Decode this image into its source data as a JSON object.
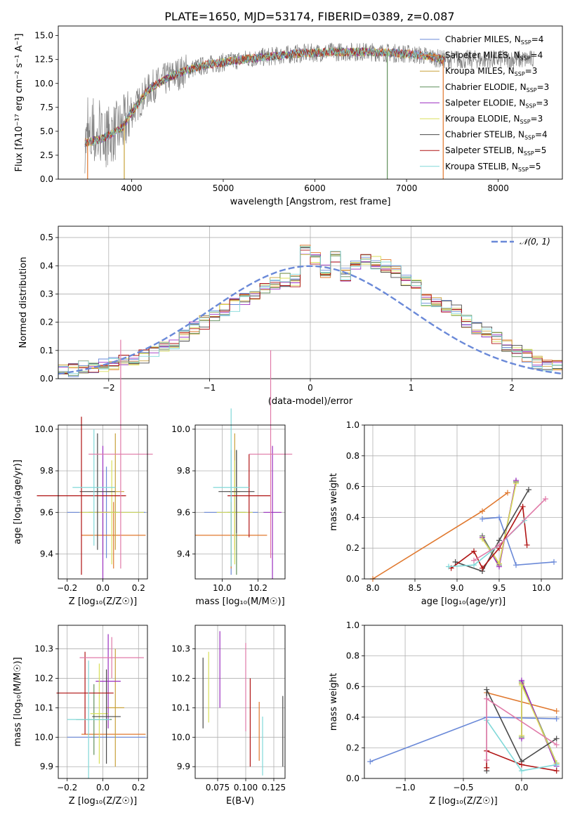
{
  "series_colors": [
    "#6a89d8",
    "#e0782e",
    "#c8a13a",
    "#5f8f5a",
    "#9b2fc0",
    "#d9df5a",
    "#4a4a4a",
    "#b01414",
    "#80d8d8",
    "#e07aa8"
  ],
  "chart_data": [
    {
      "id": "spectrum",
      "type": "line",
      "title": "PLATE=1650, MJD=53174, FIBERID=0389, z=0.087",
      "xlabel": "wavelength [Angstrom, rest frame]",
      "ylabel": "Flux [fλ10⁻¹⁷ erg cm⁻² s⁻¹ A⁻¹]",
      "xlim": [
        3200,
        8700
      ],
      "ylim": [
        0,
        16
      ],
      "xticks": [
        "4000",
        "5000",
        "6000",
        "7000",
        "8000"
      ],
      "yticks": [
        "0.0",
        "2.5",
        "5.0",
        "7.5",
        "10.0",
        "12.5",
        "15.0"
      ],
      "legend_position": "right",
      "legend": [
        "Chabrier MILES, N_SSP=4",
        "Salpeter MILES, N_SSP=4",
        "Kroupa MILES, N_SSP=3",
        "Chabrier ELODIE, N_SSP=3",
        "Salpeter ELODIE, N_SSP=3",
        "Kroupa ELODIE, N_SSP=3",
        "Chabrier STELIB, N_SSP=4",
        "Salpeter STELIB, N_SSP=5",
        "Kroupa STELIB, N_SSP=5"
      ],
      "continuum": [
        [
          3500,
          3.8
        ],
        [
          3700,
          4.3
        ],
        [
          3900,
          5.4
        ],
        [
          4000,
          7.0
        ],
        [
          4200,
          9.5
        ],
        [
          4400,
          10.6
        ],
        [
          4600,
          11.4
        ],
        [
          4800,
          11.9
        ],
        [
          5000,
          12.2
        ],
        [
          5200,
          12.5
        ],
        [
          5400,
          12.7
        ],
        [
          5600,
          12.9
        ],
        [
          5800,
          13.1
        ],
        [
          6000,
          13.2
        ],
        [
          6200,
          13.3
        ],
        [
          6400,
          13.3
        ],
        [
          6600,
          13.3
        ],
        [
          6800,
          13.2
        ],
        [
          7000,
          13.1
        ],
        [
          7200,
          12.9
        ],
        [
          7400,
          12.5
        ]
      ],
      "data_xrange": [
        3490,
        8390
      ],
      "model_xrange": [
        3490,
        7420
      ],
      "drops": [
        3520,
        3920,
        6790,
        7400
      ]
    },
    {
      "id": "residuals",
      "type": "bar",
      "xlabel": "(data-model)/error",
      "ylabel": "Normed distribution",
      "xlim": [
        -2.5,
        2.5
      ],
      "ylim": [
        0,
        0.54
      ],
      "xticks": [
        "−2",
        "−1",
        "0",
        "1",
        "2"
      ],
      "yticks": [
        "0.0",
        "0.1",
        "0.2",
        "0.3",
        "0.4",
        "0.5"
      ],
      "bin_width": 0.1,
      "bins_start": -2.5,
      "values": [
        0.03,
        0.03,
        0.04,
        0.04,
        0.05,
        0.05,
        0.06,
        0.07,
        0.08,
        0.1,
        0.11,
        0.13,
        0.15,
        0.18,
        0.2,
        0.22,
        0.24,
        0.26,
        0.28,
        0.3,
        0.32,
        0.34,
        0.35,
        0.35,
        0.46,
        0.43,
        0.38,
        0.43,
        0.37,
        0.4,
        0.42,
        0.41,
        0.4,
        0.38,
        0.35,
        0.33,
        0.28,
        0.27,
        0.26,
        0.24,
        0.2,
        0.18,
        0.16,
        0.14,
        0.12,
        0.1,
        0.08,
        0.06,
        0.05,
        0.04
      ],
      "legend": "𝒩(0, 1)",
      "legend_position": "top-right"
    },
    {
      "id": "z-age",
      "type": "scatter",
      "xlabel": "Z [log₁₀(Z/Z☉)]",
      "ylabel": "age  [log₁₀(age/yr)]",
      "xlim": [
        -0.25,
        0.25
      ],
      "ylim": [
        9.28,
        10.02
      ],
      "xticks": [
        "−0.2",
        "0.0",
        "0.2"
      ],
      "yticks": [
        "9.4",
        "9.6",
        "9.8",
        "10.0"
      ],
      "points": [
        {
          "x": 0.02,
          "y": 9.6,
          "xerr": 0.22,
          "yerr": 0.22
        },
        {
          "x": 0.06,
          "y": 9.49,
          "xerr": 0.18,
          "yerr": 0.16
        },
        {
          "x": 0.07,
          "y": 9.7,
          "xerr": 0.05,
          "yerr": 0.28
        },
        {
          "x": 0.0,
          "y": 9.6,
          "xerr": 0.08,
          "yerr": 0.2
        },
        {
          "x": 0.0,
          "y": 9.6,
          "xerr": 0.05,
          "yerr": 0.32
        },
        {
          "x": 0.05,
          "y": 9.6,
          "xerr": 0.18,
          "yerr": 0.25
        },
        {
          "x": -0.03,
          "y": 9.7,
          "xerr": 0.1,
          "yerr": 0.28
        },
        {
          "x": -0.12,
          "y": 9.68,
          "xerr": 0.25,
          "yerr": 0.38
        },
        {
          "x": -0.05,
          "y": 9.72,
          "xerr": 0.12,
          "yerr": 0.28
        },
        {
          "x": 0.1,
          "y": 9.88,
          "xerr": 0.18,
          "yerr": 0.55
        }
      ]
    },
    {
      "id": "mass-age",
      "type": "scatter",
      "xlabel": "mass [log₁₀(M/M☉)]",
      "ylabel": "",
      "xlim": [
        9.85,
        10.35
      ],
      "ylim": [
        9.28,
        10.02
      ],
      "xticks": [
        "10.0",
        "10.2"
      ],
      "yticks": [
        "9.4",
        "9.6",
        "9.8",
        "10.0"
      ],
      "points": [
        {
          "x": 10.05,
          "y": 9.6,
          "xerr": 0.15,
          "yerr": 0.3
        },
        {
          "x": 10.05,
          "y": 9.49,
          "xerr": 0.2,
          "yerr": 0.16
        },
        {
          "x": 10.07,
          "y": 9.7,
          "xerr": 0.03,
          "yerr": 0.28
        },
        {
          "x": 10.08,
          "y": 9.6,
          "xerr": 0.05,
          "yerr": 0.3
        },
        {
          "x": 10.28,
          "y": 9.6,
          "xerr": 0.05,
          "yerr": 0.32
        },
        {
          "x": 10.07,
          "y": 9.6,
          "xerr": 0.1,
          "yerr": 0.25
        },
        {
          "x": 10.08,
          "y": 9.7,
          "xerr": 0.1,
          "yerr": 0.2
        },
        {
          "x": 10.15,
          "y": 9.68,
          "xerr": 0.12,
          "yerr": 0.2
        },
        {
          "x": 10.05,
          "y": 9.72,
          "xerr": 0.1,
          "yerr": 0.38
        },
        {
          "x": 10.27,
          "y": 9.88,
          "xerr": 0.12,
          "yerr": 0.5
        }
      ]
    },
    {
      "id": "age-weight",
      "type": "line",
      "xlabel": "age  [log₁₀(age/yr)]",
      "ylabel": "mass weight",
      "xlim": [
        7.9,
        10.25
      ],
      "ylim": [
        0,
        1
      ],
      "xticks": [
        "8.0",
        "8.5",
        "9.0",
        "9.5",
        "10.0"
      ],
      "yticks": [
        "0.0",
        "0.2",
        "0.4",
        "0.6",
        "0.8",
        "1.0"
      ],
      "series": [
        {
          "x": [
            9.3,
            9.5,
            9.7,
            10.15
          ],
          "y": [
            0.39,
            0.4,
            0.09,
            0.11
          ]
        },
        {
          "x": [
            8.0,
            9.3,
            9.6
          ],
          "y": [
            0.0,
            0.44,
            0.56
          ]
        },
        {
          "x": [
            9.3,
            9.5,
            9.7
          ],
          "y": [
            0.27,
            0.1,
            0.63
          ]
        },
        {
          "x": [
            9.3,
            9.5,
            9.7
          ],
          "y": [
            0.28,
            0.09,
            0.63
          ]
        },
        {
          "x": [
            9.3,
            9.5,
            9.7
          ],
          "y": [
            0.27,
            0.08,
            0.64
          ]
        },
        {
          "x": [
            9.3,
            9.5,
            9.7
          ],
          "y": [
            0.26,
            0.1,
            0.62
          ]
        },
        {
          "x": [
            8.98,
            9.3,
            9.5,
            9.85
          ],
          "y": [
            0.11,
            0.05,
            0.25,
            0.58
          ]
        },
        {
          "x": [
            8.93,
            9.2,
            9.3,
            9.5,
            9.78,
            9.83
          ],
          "y": [
            0.07,
            0.18,
            0.07,
            0.2,
            0.47,
            0.22
          ]
        },
        {
          "x": [
            8.9,
            9.2,
            9.5,
            9.8
          ],
          "y": [
            0.08,
            0.09,
            0.22,
            0.38
          ]
        },
        {
          "x": [
            9.2,
            9.5,
            10.05
          ],
          "y": [
            0.12,
            0.22,
            0.52
          ]
        }
      ]
    },
    {
      "id": "z-mass",
      "type": "scatter",
      "xlabel": "Z [log₁₀(Z/Z☉)]",
      "ylabel": "mass [log₁₀(M/M☉)]",
      "xlim": [
        -0.25,
        0.25
      ],
      "ylim": [
        9.86,
        10.38
      ],
      "xticks": [
        "−0.2",
        "0.0",
        "0.2"
      ],
      "yticks": [
        "9.9",
        "10.0",
        "10.1",
        "10.2",
        "10.3"
      ],
      "points": [
        {
          "x": 0.02,
          "y": 10.0,
          "xerr": 0.22,
          "yerr": 0.0
        },
        {
          "x": 0.06,
          "y": 10.01,
          "xerr": 0.18,
          "yerr": 0.0
        },
        {
          "x": 0.07,
          "y": 10.1,
          "xerr": 0.05,
          "yerr": 0.2
        },
        {
          "x": -0.05,
          "y": 10.06,
          "xerr": 0.1,
          "yerr": 0.12
        },
        {
          "x": 0.03,
          "y": 10.19,
          "xerr": 0.07,
          "yerr": 0.16
        },
        {
          "x": -0.02,
          "y": 10.08,
          "xerr": 0.05,
          "yerr": 0.17
        },
        {
          "x": 0.02,
          "y": 10.07,
          "xerr": 0.08,
          "yerr": 0.16
        },
        {
          "x": -0.1,
          "y": 10.15,
          "xerr": 0.16,
          "yerr": 0.14
        },
        {
          "x": -0.08,
          "y": 10.06,
          "xerr": 0.12,
          "yerr": 0.2
        },
        {
          "x": 0.05,
          "y": 10.27,
          "xerr": 0.18,
          "yerr": 0.07
        }
      ]
    },
    {
      "id": "ebv-mass",
      "type": "scatter",
      "xlabel": "E(B-V)",
      "ylabel": "",
      "xlim": [
        0.055,
        0.135
      ],
      "ylim": [
        9.86,
        10.38
      ],
      "xticks": [
        "0.075",
        "0.100",
        "0.125"
      ],
      "yticks": [
        "9.9",
        "10.0",
        "10.1",
        "10.2",
        "10.3"
      ],
      "points": [
        {
          "x": 0.062,
          "y": 10.15,
          "yerr": 0.12
        },
        {
          "x": 0.067,
          "y": 10.17,
          "yerr": 0.12
        },
        {
          "x": 0.077,
          "y": 10.23,
          "yerr": 0.13
        },
        {
          "x": 0.1,
          "y": 10.17,
          "yerr": 0.15
        },
        {
          "x": 0.104,
          "y": 10.05,
          "yerr": 0.15
        },
        {
          "x": 0.112,
          "y": 10.02,
          "yerr": 0.1
        },
        {
          "x": 0.115,
          "y": 9.97,
          "yerr": 0.1
        },
        {
          "x": 0.133,
          "y": 10.02,
          "yerr": 0.12
        }
      ],
      "point_colors": [
        6,
        5,
        4,
        9,
        7,
        1,
        8,
        6
      ]
    },
    {
      "id": "z-weight",
      "type": "line",
      "xlabel": "Z [log₁₀(Z/Z☉)]",
      "ylabel": "mass weight",
      "xlim": [
        -1.35,
        0.35
      ],
      "ylim": [
        0,
        1
      ],
      "xticks": [
        "−1.0",
        "−0.5",
        "0.0"
      ],
      "yticks": [
        "0.0",
        "0.2",
        "0.4",
        "0.6",
        "0.8",
        "1.0"
      ],
      "series": [
        {
          "x": [
            -1.3,
            -0.3,
            0.3
          ],
          "y": [
            0.11,
            0.4,
            0.39
          ]
        },
        {
          "x": [
            -0.3,
            0.3
          ],
          "y": [
            0.56,
            0.44
          ]
        },
        {
          "x": [
            0.0,
            0.0,
            0.3
          ],
          "y": [
            0.28,
            0.62,
            0.09
          ]
        },
        {
          "x": [
            0.0,
            0.0,
            0.3
          ],
          "y": [
            0.27,
            0.63,
            0.1
          ]
        },
        {
          "x": [
            0.0,
            0.0,
            0.3
          ],
          "y": [
            0.26,
            0.64,
            0.08
          ]
        },
        {
          "x": [
            0.0,
            0.0,
            0.3
          ],
          "y": [
            0.28,
            0.61,
            0.1
          ]
        },
        {
          "x": [
            -0.3,
            -0.3,
            0.0,
            0.3
          ],
          "y": [
            0.05,
            0.58,
            0.11,
            0.26
          ]
        },
        {
          "x": [
            -0.3,
            -0.3,
            0.0,
            0.3
          ],
          "y": [
            0.07,
            0.18,
            0.09,
            0.05
          ]
        },
        {
          "x": [
            -0.3,
            0.0,
            0.3
          ],
          "y": [
            0.38,
            0.05,
            0.09
          ]
        },
        {
          "x": [
            -0.3,
            -0.3,
            0.3
          ],
          "y": [
            0.12,
            0.52,
            0.22
          ]
        }
      ]
    }
  ]
}
